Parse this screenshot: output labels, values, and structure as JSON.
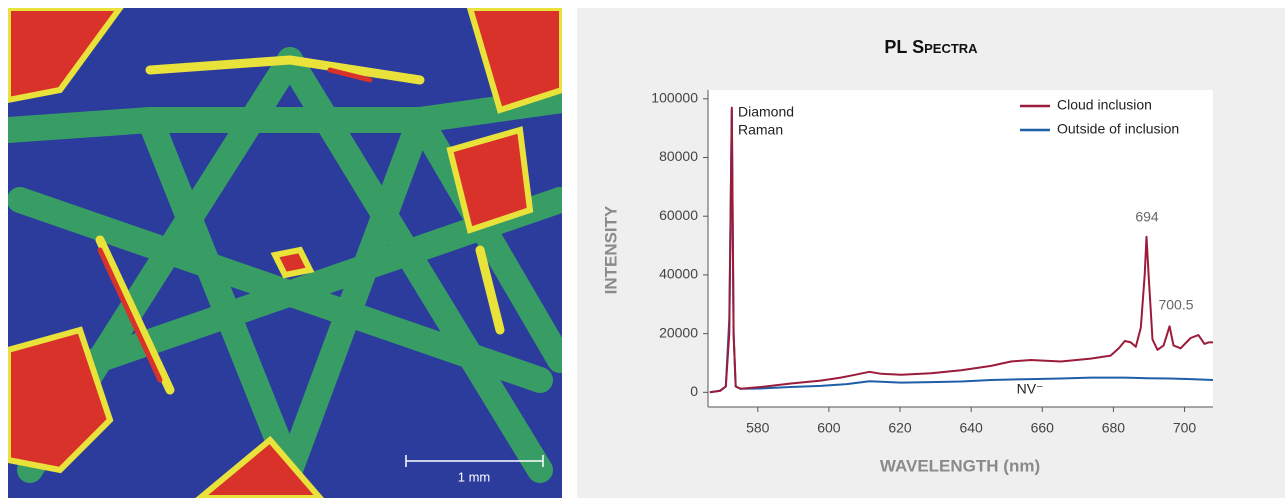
{
  "image": {
    "scale_bar": "1 mm"
  },
  "chart_data": {
    "type": "line",
    "title": "PL Spectra",
    "x_label": "WAVELENGTH (nm)",
    "y_label": "INTENSITY",
    "xlim": [
      566,
      708
    ],
    "ylim": [
      -5000,
      103000
    ],
    "xticks": [
      580,
      600,
      620,
      640,
      660,
      680,
      700
    ],
    "yticks": [
      0,
      20000,
      40000,
      60000,
      80000,
      100000
    ],
    "legend": "top-right",
    "annotations": [
      "Diamond",
      "Raman",
      "694",
      "700.5",
      "NV⁻"
    ],
    "series": [
      {
        "name": "Cloud inclusion",
        "color": "#9b1b3a",
        "x": [
          566.5,
          569.4,
          571,
          572,
          572.7,
          573.2,
          573.8,
          575.2,
          580.8,
          589.3,
          597.7,
          603.3,
          607.5,
          611.4,
          614.7,
          620.3,
          628.7,
          637.2,
          645.6,
          651.2,
          656.8,
          665.2,
          673.6,
          679.2,
          681.5,
          683.2,
          684.9,
          686.3,
          687.7,
          688.8,
          689.3,
          689.9,
          691,
          692.4,
          694.1,
          695.8,
          696.9,
          698.9,
          701.7,
          703.9,
          705.6,
          706.7,
          708
        ],
        "values": [
          0,
          500,
          2000,
          20000,
          97000,
          20000,
          2000,
          1200,
          1800,
          3000,
          4000,
          5000,
          6000,
          7000,
          6300,
          6000,
          6500,
          7500,
          9000,
          10500,
          11000,
          10500,
          11500,
          12500,
          15000,
          17500,
          17000,
          15500,
          22000,
          40000,
          53000,
          40000,
          18000,
          14500,
          16000,
          22500,
          16000,
          15000,
          18500,
          19500,
          16500,
          17000,
          17000
        ]
      },
      {
        "name": "Outside of inclusion",
        "color": "#1f5fa8",
        "x": [
          566.5,
          569.4,
          571,
          572,
          572.7,
          573.2,
          573.8,
          575.2,
          580.8,
          589.3,
          597.7,
          605,
          611.4,
          620.3,
          628.7,
          637.2,
          645.6,
          656.8,
          665.2,
          673.6,
          683.2,
          689.3,
          695.8,
          701.7,
          708
        ],
        "values": [
          0,
          600,
          2000,
          25000,
          96000,
          20000,
          2000,
          1200,
          1300,
          1800,
          2200,
          2800,
          3800,
          3300,
          3500,
          3700,
          4200,
          4500,
          4700,
          5000,
          5000,
          4800,
          4700,
          4500,
          4200
        ]
      }
    ]
  }
}
